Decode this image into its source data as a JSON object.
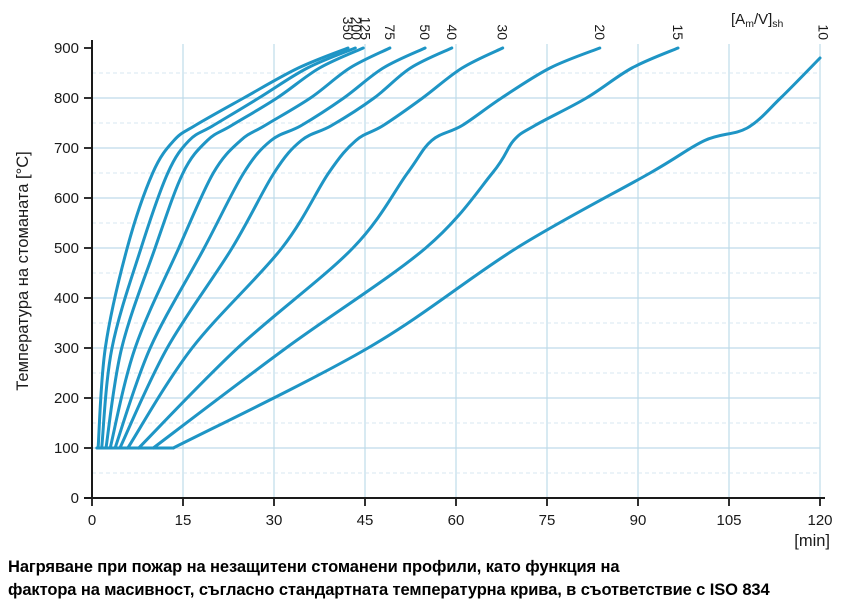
{
  "caption": {
    "line1": "Нагряване при пожар на незащитени стоманени профили, като функция на",
    "line2": "фактора на масивност, съгласно стандартната температурна крива, в съответствие с ISO 834"
  },
  "chart_data": {
    "type": "line",
    "title": "Нагряване при пожар на незащитени стоманени профили",
    "ylabel": "Температура на стоманата  [°C]",
    "xunit": "[min]",
    "section_factor_label": {
      "pre": "[A",
      "sub1": "m",
      "mid": "/V]",
      "sub2": "sh"
    },
    "xlim": [
      0,
      120
    ],
    "ylim": [
      0,
      900
    ],
    "x_ticks": [
      0,
      15,
      30,
      45,
      60,
      75,
      90,
      105,
      120
    ],
    "y_ticks": [
      0,
      100,
      200,
      300,
      400,
      500,
      600,
      700,
      800,
      900
    ],
    "grid": {
      "vertical_every": 15,
      "solid_horizontal_every": 100,
      "dashed_horizontal_at": "each 50 between majors"
    },
    "colors": {
      "curve": "#1e95c5",
      "grid_solid": "#bfdbe9",
      "grid_dashed": "#d7e7f0",
      "axis": "#1a1a1a",
      "text": "#1a1a1a"
    },
    "baseline_100C": {
      "temp": 100,
      "t_start": 0.8,
      "t_end": 13.4
    },
    "series": [
      {
        "label": "350",
        "label_t": 42.2,
        "points": [
          [
            1.0,
            100
          ],
          [
            2.2,
            300
          ],
          [
            5.8,
            500
          ],
          [
            10,
            650
          ],
          [
            13.5,
            715
          ],
          [
            17,
            745
          ],
          [
            25,
            800
          ],
          [
            34,
            860
          ],
          [
            42.2,
            900
          ]
        ]
      },
      {
        "label": "200",
        "label_t": 43.6,
        "points": [
          [
            1.6,
            100
          ],
          [
            3.3,
            300
          ],
          [
            8.1,
            500
          ],
          [
            12.5,
            650
          ],
          [
            16,
            715
          ],
          [
            20,
            745
          ],
          [
            27.5,
            800
          ],
          [
            35.5,
            860
          ],
          [
            43.4,
            900
          ]
        ]
      },
      {
        "label": "125",
        "label_t": 45.1,
        "points": [
          [
            2.3,
            100
          ],
          [
            4.9,
            300
          ],
          [
            10.4,
            500
          ],
          [
            15,
            650
          ],
          [
            19,
            715
          ],
          [
            23,
            745
          ],
          [
            30.5,
            800
          ],
          [
            37.5,
            860
          ],
          [
            44.7,
            900
          ]
        ]
      },
      {
        "label": "75",
        "label_t": 49.1,
        "points": [
          [
            3.0,
            100
          ],
          [
            7.1,
            300
          ],
          [
            14.3,
            500
          ],
          [
            20,
            650
          ],
          [
            24.5,
            715
          ],
          [
            28.5,
            745
          ],
          [
            36,
            800
          ],
          [
            42.5,
            860
          ],
          [
            49.1,
            900
          ]
        ]
      },
      {
        "label": "50",
        "label_t": 54.9,
        "points": [
          [
            3.8,
            100
          ],
          [
            9.6,
            300
          ],
          [
            18.5,
            500
          ],
          [
            25,
            650
          ],
          [
            29.5,
            715
          ],
          [
            34.5,
            745
          ],
          [
            41.5,
            800
          ],
          [
            48,
            860
          ],
          [
            54.9,
            900
          ]
        ]
      },
      {
        "label": "40",
        "label_t": 59.3,
        "points": [
          [
            4.6,
            100
          ],
          [
            12.4,
            300
          ],
          [
            23.1,
            500
          ],
          [
            30,
            650
          ],
          [
            34.5,
            715
          ],
          [
            39.5,
            745
          ],
          [
            46.5,
            800
          ],
          [
            52.5,
            860
          ],
          [
            59.3,
            900
          ]
        ]
      },
      {
        "label": "30",
        "label_t": 67.7,
        "points": [
          [
            5.9,
            100
          ],
          [
            16.5,
            300
          ],
          [
            31.3,
            500
          ],
          [
            39,
            650
          ],
          [
            43.5,
            715
          ],
          [
            48,
            745
          ],
          [
            54.5,
            800
          ],
          [
            61,
            860
          ],
          [
            67.7,
            900
          ]
        ]
      },
      {
        "label": "20",
        "label_t": 83.7,
        "points": [
          [
            7.7,
            100
          ],
          [
            24,
            300
          ],
          [
            43,
            500
          ],
          [
            52,
            650
          ],
          [
            56,
            715
          ],
          [
            61,
            745
          ],
          [
            67.5,
            800
          ],
          [
            75.5,
            860
          ],
          [
            83.7,
            900
          ]
        ]
      },
      {
        "label": "15",
        "label_t": 96.6,
        "points": [
          [
            10.1,
            100
          ],
          [
            32,
            300
          ],
          [
            55,
            500
          ],
          [
            66,
            650
          ],
          [
            69.5,
            715
          ],
          [
            73,
            745
          ],
          [
            81.5,
            800
          ],
          [
            89,
            860
          ],
          [
            96.6,
            900
          ]
        ]
      },
      {
        "label": "10",
        "label_t": 120.6,
        "points": [
          [
            13.4,
            100
          ],
          [
            45.5,
            300
          ],
          [
            70,
            500
          ],
          [
            92,
            650
          ],
          [
            101,
            715
          ],
          [
            108,
            740
          ],
          [
            113.5,
            800
          ],
          [
            120,
            880
          ]
        ]
      }
    ]
  }
}
